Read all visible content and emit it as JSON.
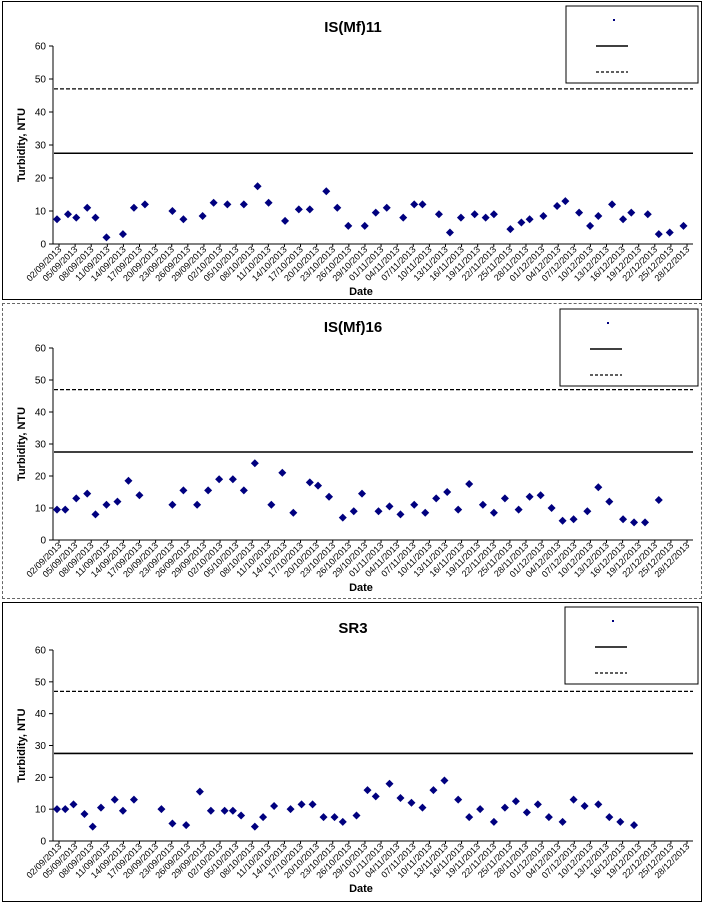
{
  "charts": [
    {
      "title": "IS(Mf)11",
      "xlabel": "Date",
      "ylabel": "Turbidity, NTU",
      "ylim": [
        0,
        60
      ],
      "yticks": [
        "0",
        "10",
        "20",
        "30",
        "40",
        "50",
        "60"
      ],
      "dates": [
        "02/09/2013",
        "05/09/2013",
        "08/09/2013",
        "11/09/2013",
        "14/09/2013",
        "17/09/2013",
        "20/09/2013",
        "23/09/2013",
        "26/09/2013",
        "29/09/2013",
        "02/10/2013",
        "05/10/2013",
        "08/10/2013",
        "11/10/2013",
        "14/10/2013",
        "17/10/2013",
        "20/10/2013",
        "23/10/2013",
        "26/10/2013",
        "29/10/2013",
        "01/11/2013",
        "04/11/2013",
        "07/11/2013",
        "10/11/2013",
        "13/11/2013",
        "16/11/2013",
        "19/11/2013",
        "22/11/2013",
        "25/11/2013",
        "28/11/2013",
        "01/12/2013",
        "04/12/2013",
        "07/12/2013",
        "10/12/2013",
        "13/12/2013",
        "16/12/2013",
        "19/12/2013",
        "22/12/2013",
        "25/12/2013",
        "28/12/2013"
      ],
      "solid_line": 27.5,
      "dashed_line": 47,
      "legend": [
        "",
        "",
        ""
      ],
      "colors": {
        "marker": "#00007f",
        "line": "#000000"
      },
      "points": [
        [
          0,
          7.5
        ],
        [
          4,
          9
        ],
        [
          7,
          8
        ],
        [
          11,
          11
        ],
        [
          14,
          8
        ],
        [
          18,
          2
        ],
        [
          24,
          3
        ],
        [
          28,
          11
        ],
        [
          32,
          12
        ],
        [
          42,
          10
        ],
        [
          46,
          7.5
        ],
        [
          53,
          8.5
        ],
        [
          57,
          12.5
        ],
        [
          62,
          12
        ],
        [
          68,
          12
        ],
        [
          73,
          17.5
        ],
        [
          77,
          12.5
        ],
        [
          83,
          7
        ],
        [
          88,
          10.5
        ],
        [
          92,
          10.5
        ],
        [
          98,
          16
        ],
        [
          102,
          11
        ],
        [
          106,
          5.5
        ],
        [
          112,
          5.5
        ],
        [
          116,
          9.5
        ],
        [
          120,
          11
        ],
        [
          126,
          8
        ],
        [
          130,
          12
        ],
        [
          133,
          12
        ],
        [
          139,
          9
        ],
        [
          143,
          3.5
        ],
        [
          147,
          8
        ],
        [
          152,
          9
        ],
        [
          156,
          8
        ],
        [
          159,
          9
        ],
        [
          165,
          4.5
        ],
        [
          169,
          6.5
        ],
        [
          172,
          7.5
        ],
        [
          177,
          8.5
        ],
        [
          182,
          11.5
        ],
        [
          185,
          13
        ],
        [
          190,
          9.5
        ],
        [
          194,
          5.5
        ],
        [
          197,
          8.5
        ],
        [
          202,
          12
        ],
        [
          206,
          7.5
        ],
        [
          209,
          9.5
        ],
        [
          215,
          9
        ],
        [
          219,
          3
        ],
        [
          223,
          3.5
        ],
        [
          228,
          5.5
        ]
      ]
    },
    {
      "title": "IS(Mf)16",
      "xlabel": "Date",
      "ylabel": "Turbidity, NTU",
      "ylim": [
        0,
        60
      ],
      "yticks": [
        "0",
        "10",
        "20",
        "30",
        "40",
        "50",
        "60"
      ],
      "dates": [
        "02/09/2013",
        "05/09/2013",
        "08/09/2013",
        "11/09/2013",
        "14/09/2013",
        "17/09/2013",
        "20/09/2013",
        "23/09/2013",
        "26/09/2013",
        "29/09/2013",
        "02/10/2013",
        "05/10/2013",
        "08/10/2013",
        "11/10/2013",
        "14/10/2013",
        "17/10/2013",
        "20/10/2013",
        "23/10/2013",
        "26/10/2013",
        "29/10/2013",
        "01/11/2013",
        "04/11/2013",
        "07/11/2013",
        "10/11/2013",
        "13/11/2013",
        "16/11/2013",
        "19/11/2013",
        "22/11/2013",
        "25/11/2013",
        "28/11/2013",
        "01/12/2013",
        "04/12/2013",
        "07/12/2013",
        "10/12/2013",
        "13/12/2013",
        "16/12/2013",
        "19/12/2013",
        "22/12/2013",
        "25/12/2013",
        "28/12/2013"
      ],
      "solid_line": 27.5,
      "dashed_line": 47,
      "legend": [
        "",
        "",
        ""
      ],
      "colors": {
        "marker": "#00007f",
        "line": "#000000"
      },
      "points": [
        [
          0,
          9.5
        ],
        [
          3,
          9.5
        ],
        [
          7,
          13
        ],
        [
          11,
          14.5
        ],
        [
          14,
          8
        ],
        [
          18,
          11
        ],
        [
          22,
          12
        ],
        [
          26,
          18.5
        ],
        [
          30,
          14
        ],
        [
          42,
          11
        ],
        [
          46,
          15.5
        ],
        [
          51,
          11
        ],
        [
          55,
          15.5
        ],
        [
          59,
          19
        ],
        [
          64,
          19
        ],
        [
          68,
          15.5
        ],
        [
          72,
          24
        ],
        [
          78,
          11
        ],
        [
          82,
          21
        ],
        [
          86,
          8.5
        ],
        [
          92,
          18
        ],
        [
          95,
          17
        ],
        [
          99,
          13.5
        ],
        [
          104,
          7
        ],
        [
          108,
          9
        ],
        [
          111,
          14.5
        ],
        [
          117,
          9
        ],
        [
          121,
          10.5
        ],
        [
          125,
          8
        ],
        [
          130,
          11
        ],
        [
          134,
          8.5
        ],
        [
          138,
          13
        ],
        [
          142,
          15
        ],
        [
          146,
          9.5
        ],
        [
          150,
          17.5
        ],
        [
          155,
          11
        ],
        [
          159,
          8.5
        ],
        [
          163,
          13
        ],
        [
          168,
          9.5
        ],
        [
          172,
          13.5
        ],
        [
          176,
          14
        ],
        [
          180,
          10
        ],
        [
          184,
          6
        ],
        [
          188,
          6.5
        ],
        [
          193,
          9
        ],
        [
          197,
          16.5
        ],
        [
          201,
          12
        ],
        [
          206,
          6.5
        ],
        [
          210,
          5.5
        ],
        [
          214,
          5.5
        ],
        [
          219,
          12.5
        ]
      ]
    },
    {
      "title": "SR3",
      "xlabel": "Date",
      "ylabel": "Turbidity, NTU",
      "ylim": [
        0,
        60
      ],
      "yticks": [
        "0",
        "10",
        "20",
        "30",
        "40",
        "50",
        "60"
      ],
      "dates": [
        "02/09/2013",
        "05/09/2013",
        "08/09/2013",
        "11/09/2013",
        "14/09/2013",
        "17/09/2013",
        "20/09/2013",
        "23/09/2013",
        "26/09/2013",
        "29/09/2013",
        "02/10/2013",
        "05/10/2013",
        "08/10/2013",
        "11/10/2013",
        "14/10/2013",
        "17/10/2013",
        "20/10/2013",
        "23/10/2013",
        "26/10/2013",
        "29/10/2013",
        "01/11/2013",
        "04/11/2013",
        "07/11/2013",
        "10/11/2013",
        "13/11/2013",
        "16/11/2013",
        "19/11/2013",
        "22/11/2013",
        "25/11/2013",
        "28/11/2013",
        "01/12/2013",
        "04/12/2013",
        "07/12/2013",
        "10/12/2013",
        "13/12/2013",
        "16/12/2013",
        "19/12/2013",
        "22/12/2013",
        "25/12/2013",
        "28/12/2013"
      ],
      "solid_line": 27.5,
      "dashed_line": 47,
      "legend": [
        "",
        "",
        ""
      ],
      "colors": {
        "marker": "#00007f",
        "line": "#000000"
      },
      "points": [
        [
          0,
          10
        ],
        [
          3,
          10
        ],
        [
          6,
          11.5
        ],
        [
          10,
          8.5
        ],
        [
          13,
          4.5
        ],
        [
          16,
          10.5
        ],
        [
          21,
          13
        ],
        [
          24,
          9.5
        ],
        [
          28,
          13
        ],
        [
          38,
          10
        ],
        [
          42,
          5.5
        ],
        [
          47,
          5
        ],
        [
          52,
          15.5
        ],
        [
          56,
          9.5
        ],
        [
          61,
          9.5
        ],
        [
          64,
          9.5
        ],
        [
          67,
          8
        ],
        [
          72,
          4.5
        ],
        [
          75,
          7.5
        ],
        [
          79,
          11
        ],
        [
          85,
          10
        ],
        [
          89,
          11.5
        ],
        [
          93,
          11.5
        ],
        [
          97,
          7.5
        ],
        [
          101,
          7.5
        ],
        [
          104,
          6
        ],
        [
          109,
          8
        ],
        [
          113,
          16
        ],
        [
          116,
          14
        ],
        [
          121,
          18
        ],
        [
          125,
          13.5
        ],
        [
          129,
          12
        ],
        [
          133,
          10.5
        ],
        [
          137,
          16
        ],
        [
          141,
          19
        ],
        [
          146,
          13
        ],
        [
          150,
          7.5
        ],
        [
          154,
          10
        ],
        [
          159,
          6
        ],
        [
          163,
          10.5
        ],
        [
          167,
          12.5
        ],
        [
          171,
          9
        ],
        [
          175,
          11.5
        ],
        [
          179,
          7.5
        ],
        [
          184,
          6
        ],
        [
          188,
          13
        ],
        [
          192,
          11
        ],
        [
          197,
          11.5
        ],
        [
          201,
          7.5
        ],
        [
          205,
          6
        ],
        [
          210,
          5
        ]
      ]
    }
  ]
}
